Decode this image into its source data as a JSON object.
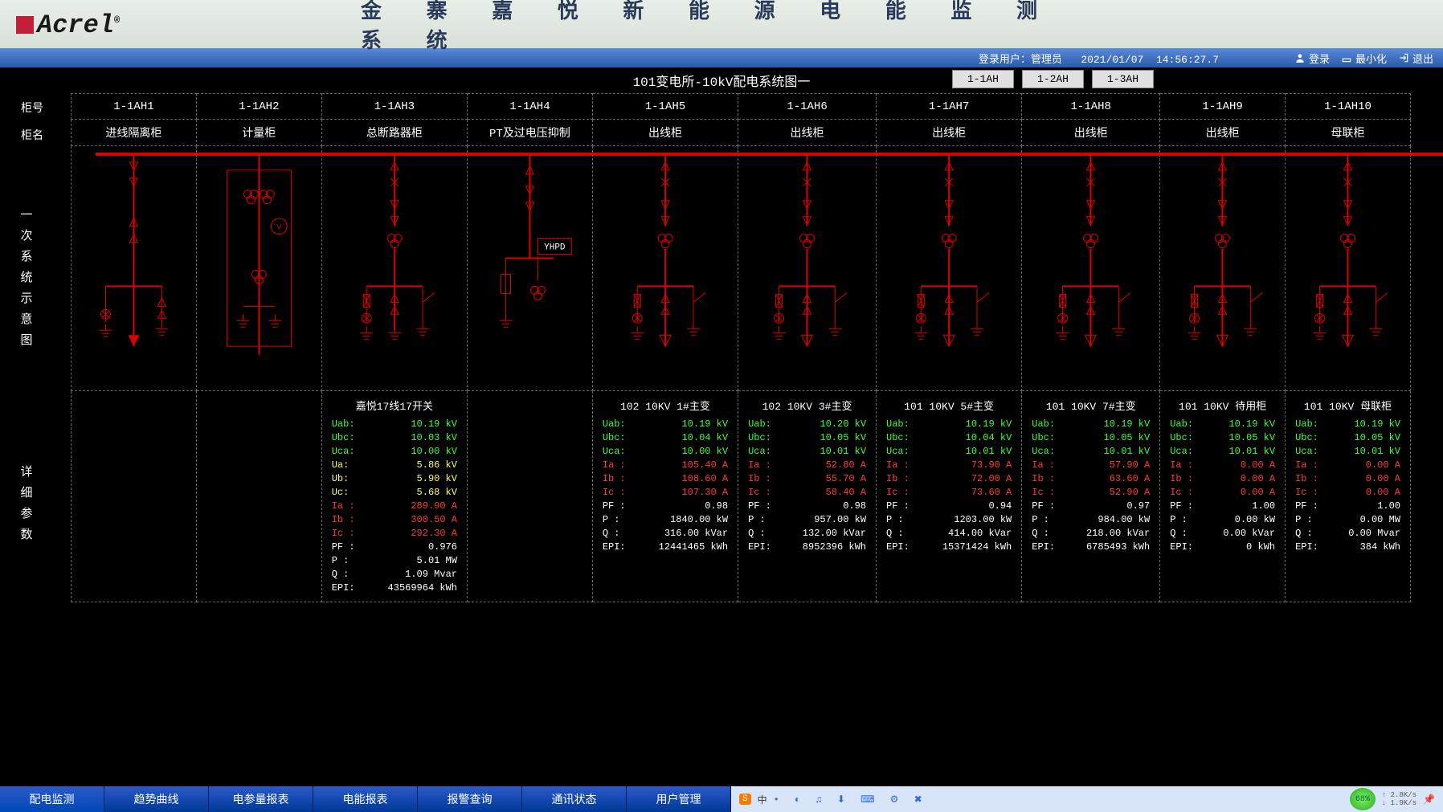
{
  "header": {
    "logo_text": "Acrel",
    "reg": "®",
    "system_title": "金 寨 嘉 悦 新 能 源 电 能 监 测 系 统"
  },
  "topbar": {
    "user_label": "登录用户：",
    "user": "管理员",
    "date": "2021/01/07",
    "time": "14:56:27.7",
    "login": "登录",
    "minimize": "最小化",
    "exit": "退出"
  },
  "subtitle": "101变电所-10kV配电系统图一",
  "ah_buttons": [
    "1-1AH",
    "1-2AH",
    "1-3AH"
  ],
  "row_labels": {
    "col_no": "柜号",
    "col_name": "柜名",
    "diagram": "一次系统示意图",
    "params": "详细参数"
  },
  "columns": [
    {
      "no": "1-1AH1",
      "name": "进线隔离柜"
    },
    {
      "no": "1-1AH2",
      "name": "计量柜"
    },
    {
      "no": "1-1AH3",
      "name": "总断路器柜"
    },
    {
      "no": "1-1AH4",
      "name": "PT及过电压抑制"
    },
    {
      "no": "1-1AH5",
      "name": "出线柜"
    },
    {
      "no": "1-1AH6",
      "name": "出线柜"
    },
    {
      "no": "1-1AH7",
      "name": "出线柜"
    },
    {
      "no": "1-1AH8",
      "name": "出线柜"
    },
    {
      "no": "1-1AH9",
      "name": "出线柜"
    },
    {
      "no": "1-1AH10",
      "name": "母联柜"
    }
  ],
  "diagram": {
    "color": "#dd0000",
    "yhpd_label": "YHPD"
  },
  "colors": {
    "green": "#3aff3a",
    "yellow": "#ffff55",
    "red": "#ff3a3a",
    "white": "#ffffff"
  },
  "params": [
    null,
    null,
    {
      "title": "嘉悦17线17开关",
      "rows": [
        [
          "Uab:",
          "10.19 kV",
          "green"
        ],
        [
          "Ubc:",
          "10.03 kV",
          "green"
        ],
        [
          "Uca:",
          "10.00 kV",
          "green"
        ],
        [
          "Ua:",
          "5.86 kV",
          "yellow"
        ],
        [
          "Ub:",
          "5.90 kV",
          "yellow"
        ],
        [
          "Uc:",
          "5.68 kV",
          "yellow"
        ],
        [
          "Ia :",
          "289.90 A",
          "red"
        ],
        [
          "Ib :",
          "300.50 A",
          "red"
        ],
        [
          "Ic :",
          "292.30 A",
          "red"
        ],
        [
          "PF :",
          "0.976",
          "white"
        ],
        [
          "P  :",
          "5.01 MW",
          "white"
        ],
        [
          "Q  :",
          "1.09 Mvar",
          "white"
        ],
        [
          "EPI:",
          "43569964 kWh",
          "white"
        ]
      ]
    },
    null,
    {
      "title": "102 10KV 1#主变",
      "rows": [
        [
          "Uab:",
          "10.19 kV",
          "green"
        ],
        [
          "Ubc:",
          "10.04 kV",
          "green"
        ],
        [
          "Uca:",
          "10.00 kV",
          "green"
        ],
        [
          "Ia :",
          "105.40 A",
          "red"
        ],
        [
          "Ib :",
          "108.60 A",
          "red"
        ],
        [
          "Ic :",
          "107.30 A",
          "red"
        ],
        [
          "PF :",
          "0.98",
          "white"
        ],
        [
          "P  :",
          "1840.00 kW",
          "white"
        ],
        [
          "Q  :",
          "316.00 kVar",
          "white"
        ],
        [
          "EPI:",
          "12441465 kWh",
          "white"
        ]
      ]
    },
    {
      "title": "102 10KV 3#主变",
      "rows": [
        [
          "Uab:",
          "10.20 kV",
          "green"
        ],
        [
          "Ubc:",
          "10.05 kV",
          "green"
        ],
        [
          "Uca:",
          "10.01 kV",
          "green"
        ],
        [
          "Ia :",
          "52.80 A",
          "red"
        ],
        [
          "Ib :",
          "55.70 A",
          "red"
        ],
        [
          "Ic :",
          "58.40 A",
          "red"
        ],
        [
          "PF :",
          "0.98",
          "white"
        ],
        [
          "P  :",
          "957.00 kW",
          "white"
        ],
        [
          "Q  :",
          "132.00 kVar",
          "white"
        ],
        [
          "EPI:",
          "8952396 kWh",
          "white"
        ]
      ]
    },
    {
      "title": "101 10KV 5#主变",
      "rows": [
        [
          "Uab:",
          "10.19 kV",
          "green"
        ],
        [
          "Ubc:",
          "10.04 kV",
          "green"
        ],
        [
          "Uca:",
          "10.01 kV",
          "green"
        ],
        [
          "Ia :",
          "73.90 A",
          "red"
        ],
        [
          "Ib :",
          "72.00 A",
          "red"
        ],
        [
          "Ic :",
          "73.60 A",
          "red"
        ],
        [
          "PF :",
          "0.94",
          "white"
        ],
        [
          "P  :",
          "1203.00 kW",
          "white"
        ],
        [
          "Q  :",
          "414.00 kVar",
          "white"
        ],
        [
          "EPI:",
          "15371424 kWh",
          "white"
        ]
      ]
    },
    {
      "title": "101 10KV 7#主变",
      "rows": [
        [
          "Uab:",
          "10.19 kV",
          "green"
        ],
        [
          "Ubc:",
          "10.05 kV",
          "green"
        ],
        [
          "Uca:",
          "10.01 kV",
          "green"
        ],
        [
          "Ia :",
          "57.90 A",
          "red"
        ],
        [
          "Ib :",
          "63.60 A",
          "red"
        ],
        [
          "Ic :",
          "52.90 A",
          "red"
        ],
        [
          "PF :",
          "0.97",
          "white"
        ],
        [
          "P  :",
          "984.00 kW",
          "white"
        ],
        [
          "Q  :",
          "218.00 kVar",
          "white"
        ],
        [
          "EPI:",
          "6785493 kWh",
          "white"
        ]
      ]
    },
    {
      "title": "101 10KV 待用柜",
      "rows": [
        [
          "Uab:",
          "10.19 kV",
          "green"
        ],
        [
          "Ubc:",
          "10.05 kV",
          "green"
        ],
        [
          "Uca:",
          "10.01 kV",
          "green"
        ],
        [
          "Ia :",
          "0.00 A",
          "red"
        ],
        [
          "Ib :",
          "0.00 A",
          "red"
        ],
        [
          "Ic :",
          "0.00 A",
          "red"
        ],
        [
          "PF :",
          "1.00",
          "white"
        ],
        [
          "P  :",
          "0.00 kW",
          "white"
        ],
        [
          "Q  :",
          "0.00 kVar",
          "white"
        ],
        [
          "EPI:",
          "0 kWh",
          "white"
        ]
      ]
    },
    {
      "title": "101 10KV 母联柜",
      "rows": [
        [
          "Uab:",
          "10.19 kV",
          "green"
        ],
        [
          "Ubc:",
          "10.05 kV",
          "green"
        ],
        [
          "Uca:",
          "10.01 kV",
          "green"
        ],
        [
          "Ia :",
          "0.00 A",
          "red"
        ],
        [
          "Ib :",
          "0.00 A",
          "red"
        ],
        [
          "Ic :",
          "0.00 A",
          "red"
        ],
        [
          "PF :",
          "1.00",
          "white"
        ],
        [
          "P  :",
          "0.00 MW",
          "white"
        ],
        [
          "Q  :",
          "0.00 Mvar",
          "white"
        ],
        [
          "EPI:",
          "384 kWh",
          "white"
        ]
      ]
    }
  ],
  "nav": [
    "配电监测",
    "趋势曲线",
    "电参量报表",
    "电能报表",
    "报警查询",
    "通讯状态",
    "用户管理"
  ],
  "tray": {
    "ime": "中",
    "net_pct": "68%",
    "up": "2.8K/s",
    "down": "1.9K/s"
  }
}
